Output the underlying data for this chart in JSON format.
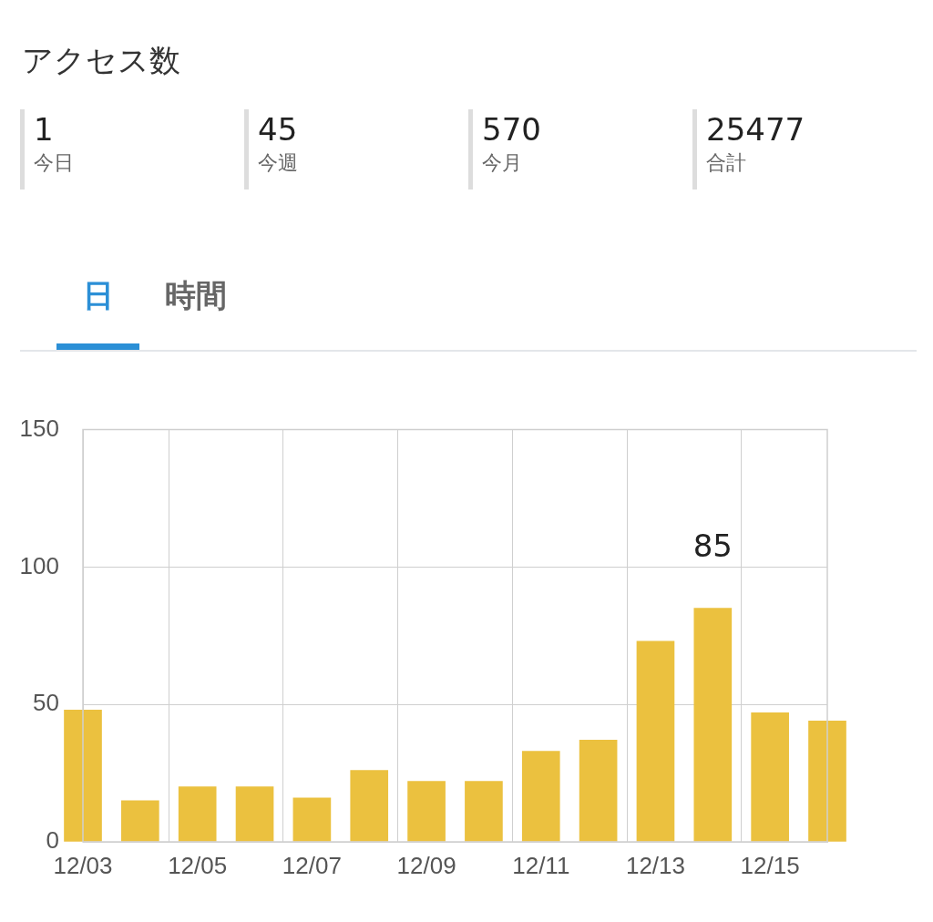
{
  "chart_data": {
    "type": "bar",
    "title": "アクセス数",
    "annotations": [
      "1",
      "今日",
      "45",
      "今週",
      "570",
      "今月",
      "25477",
      "合計",
      "日",
      "時間"
    ],
    "categories": [
      "12/03",
      null,
      "12/05",
      null,
      "12/07",
      null,
      "12/09",
      null,
      "12/11",
      null,
      "12/13",
      null,
      "12/15",
      null
    ],
    "values": [
      48,
      15,
      20,
      20,
      16,
      26,
      22,
      22,
      33,
      37,
      73,
      85,
      47,
      44
    ],
    "value_labels": [
      null,
      null,
      null,
      null,
      null,
      null,
      null,
      null,
      null,
      null,
      null,
      "85",
      null,
      null
    ],
    "color": "#ebc13f",
    "ylim": [
      0,
      150
    ],
    "yticks": [
      0,
      50,
      100,
      150
    ],
    "grid": true
  }
}
